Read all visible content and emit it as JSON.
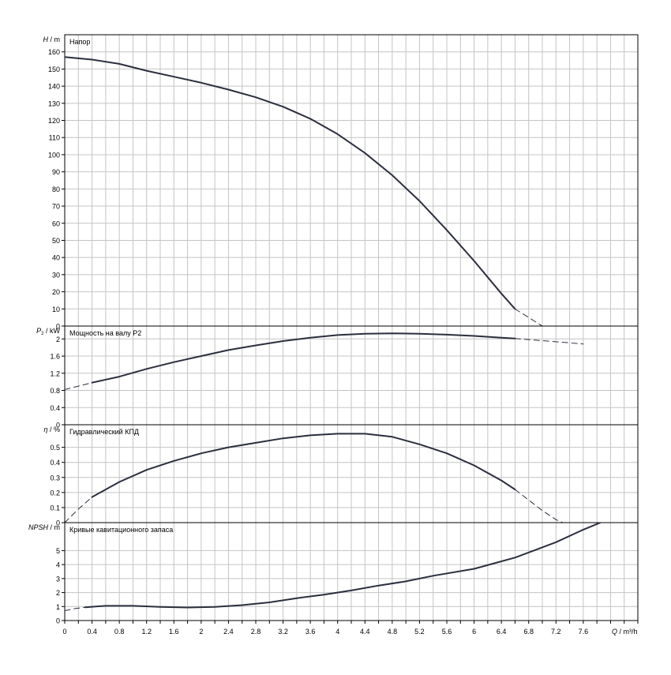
{
  "chart_data": [
    {
      "type": "line",
      "title": "Напор",
      "ylabel_var": "H",
      "ylabel_unit": "m",
      "ylim": [
        0,
        170
      ],
      "yticks": [
        0,
        10,
        20,
        30,
        40,
        50,
        60,
        70,
        80,
        90,
        100,
        110,
        120,
        130,
        140,
        150,
        160
      ],
      "xlim": [
        0,
        8.4
      ],
      "grid": true,
      "series": [
        {
          "style": "solid",
          "x": [
            0,
            0.4,
            0.8,
            1.2,
            1.6,
            2.0,
            2.4,
            2.8,
            3.2,
            3.6,
            4.0,
            4.4,
            4.8,
            5.2,
            5.6,
            6.0,
            6.4,
            6.6
          ],
          "y": [
            157,
            155.5,
            153,
            149,
            145.5,
            142,
            138,
            133.5,
            128,
            121,
            112,
            101,
            88,
            73,
            56,
            38,
            19,
            10
          ]
        },
        {
          "style": "dashed",
          "x": [
            6.6,
            6.8,
            7.0,
            7.2,
            7.3
          ],
          "y": [
            10,
            5,
            0,
            -5,
            -8
          ]
        }
      ]
    },
    {
      "type": "line",
      "title": "Мощность на валу P2",
      "ylabel_var": "P",
      "ylabel_sub": "2",
      "ylabel_unit": "kW",
      "ylim": [
        0,
        2.3
      ],
      "yticks": [
        0,
        0.4,
        0.8,
        1.2,
        1.6,
        2
      ],
      "ytick_labels": [
        "0",
        "0.4",
        "0.8",
        "1.2",
        "1.6",
        "2"
      ],
      "xlim": [
        0,
        8.4
      ],
      "grid": true,
      "series": [
        {
          "style": "dashed",
          "x": [
            0,
            0.2,
            0.4
          ],
          "y": [
            0.82,
            0.9,
            0.98
          ]
        },
        {
          "style": "solid",
          "x": [
            0.4,
            0.8,
            1.2,
            1.6,
            2.0,
            2.4,
            2.8,
            3.2,
            3.6,
            4.0,
            4.4,
            4.8,
            5.2,
            5.6,
            6.0,
            6.4,
            6.6
          ],
          "y": [
            0.98,
            1.12,
            1.3,
            1.46,
            1.6,
            1.74,
            1.85,
            1.95,
            2.03,
            2.09,
            2.12,
            2.13,
            2.12,
            2.1,
            2.07,
            2.03,
            2.01
          ]
        },
        {
          "style": "dashed",
          "x": [
            6.6,
            7.0,
            7.4,
            7.6
          ],
          "y": [
            2.01,
            1.96,
            1.91,
            1.88
          ]
        }
      ]
    },
    {
      "type": "line",
      "title": "Гидравлический КПД",
      "ylabel_var": "η",
      "ylabel_unit": "%",
      "ylim": [
        0,
        0.65
      ],
      "yticks": [
        0,
        0.1,
        0.2,
        0.3,
        0.4,
        0.5
      ],
      "ytick_labels": [
        "0",
        "0.1",
        "0.2",
        "0.3",
        "0.4",
        "0.5"
      ],
      "xlim": [
        0,
        8.4
      ],
      "grid": true,
      "series": [
        {
          "style": "dashed",
          "x": [
            0,
            0.2,
            0.4
          ],
          "y": [
            0,
            0.09,
            0.17
          ]
        },
        {
          "style": "solid",
          "x": [
            0.4,
            0.8,
            1.2,
            1.6,
            2.0,
            2.4,
            2.8,
            3.2,
            3.6,
            4.0,
            4.4,
            4.8,
            5.2,
            5.6,
            6.0,
            6.4,
            6.6
          ],
          "y": [
            0.17,
            0.27,
            0.35,
            0.41,
            0.46,
            0.5,
            0.53,
            0.56,
            0.58,
            0.59,
            0.59,
            0.57,
            0.52,
            0.46,
            0.38,
            0.28,
            0.22
          ]
        },
        {
          "style": "dashed",
          "x": [
            6.6,
            6.8,
            7.0,
            7.2,
            7.3
          ],
          "y": [
            0.22,
            0.15,
            0.08,
            0.02,
            0
          ]
        }
      ]
    },
    {
      "type": "line",
      "title": "Кривые кавитационного запаса",
      "ylabel_var": "NPSH",
      "ylabel_unit": "m",
      "ylim": [
        0,
        7
      ],
      "yticks": [
        0,
        1,
        2,
        3,
        4,
        5
      ],
      "ytick_labels": [
        "0",
        "1",
        "2",
        "3",
        "4",
        "5"
      ],
      "xlim": [
        0,
        8.4
      ],
      "xlabel_var": "Q",
      "xlabel_unit": "m³/h",
      "xticks": [
        0,
        0.4,
        0.8,
        1.2,
        1.6,
        2,
        2.4,
        2.8,
        3.2,
        3.6,
        4,
        4.4,
        4.8,
        5.2,
        5.6,
        6,
        6.4,
        6.8,
        7.2,
        7.6
      ],
      "grid": true,
      "series": [
        {
          "style": "dashed",
          "x": [
            0,
            0.15,
            0.3
          ],
          "y": [
            0.7,
            0.85,
            0.95
          ]
        },
        {
          "style": "solid",
          "x": [
            0.3,
            0.6,
            1.0,
            1.4,
            1.8,
            2.2,
            2.6,
            3.0,
            3.4,
            3.8,
            4.2,
            4.6,
            5.0,
            5.4,
            6.0,
            6.6,
            7.2,
            7.6,
            7.9
          ],
          "y": [
            0.95,
            1.05,
            1.05,
            0.97,
            0.93,
            0.97,
            1.1,
            1.3,
            1.6,
            1.85,
            2.15,
            2.5,
            2.8,
            3.2,
            3.7,
            4.5,
            5.6,
            6.5,
            7.1
          ]
        }
      ]
    }
  ]
}
